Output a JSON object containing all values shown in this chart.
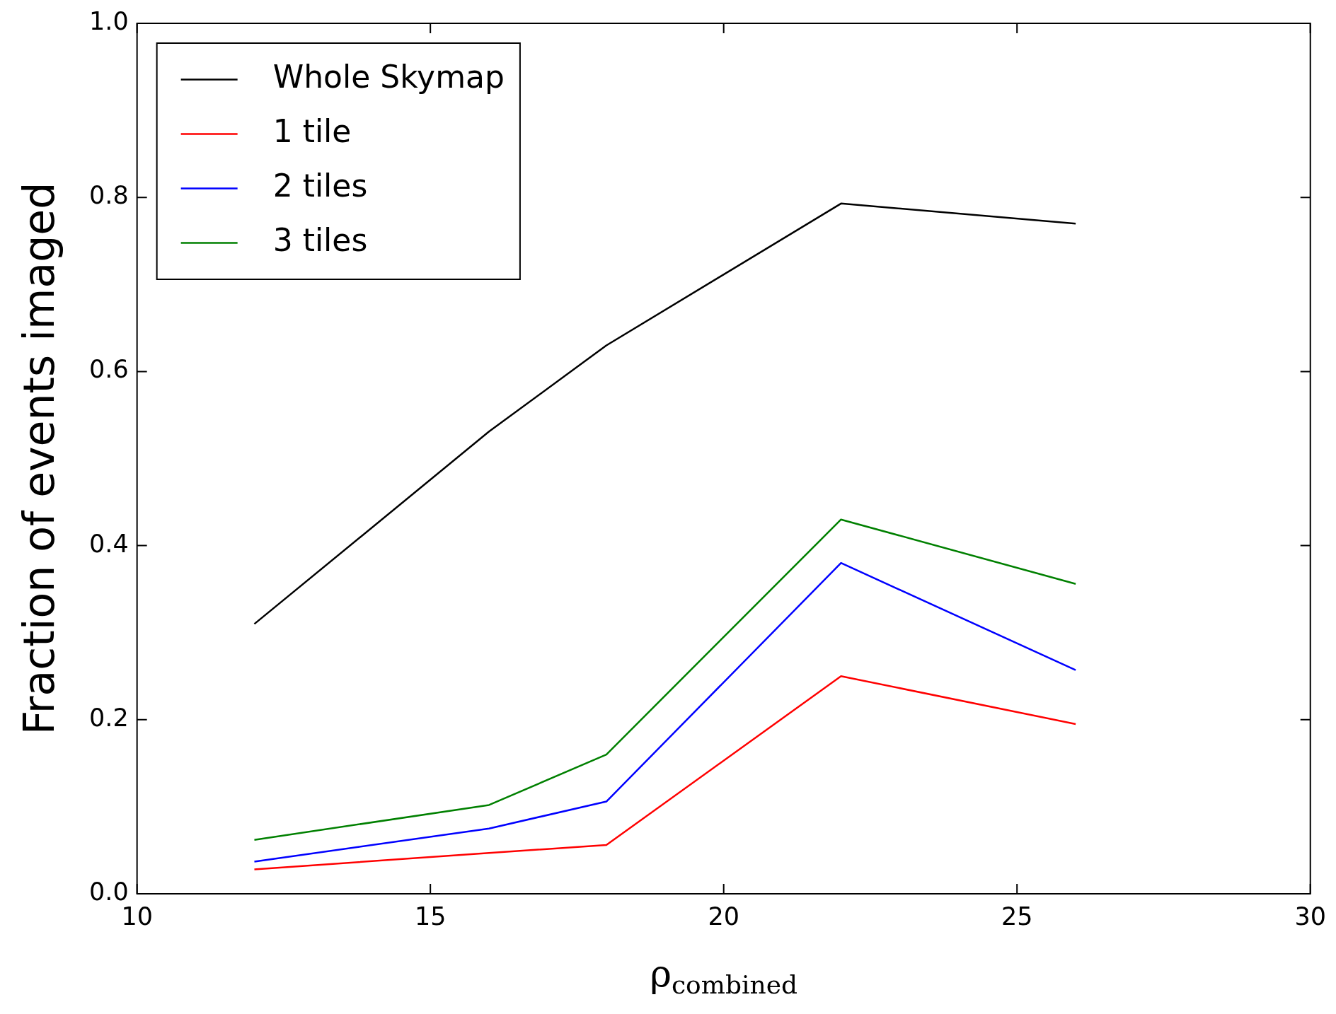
{
  "chart_data": {
    "type": "line",
    "xlabel": "ρ$_{combined}$",
    "ylabel": "Fraction of events imaged",
    "x": [
      12,
      16,
      18,
      22,
      26
    ],
    "series": [
      {
        "name": "Whole Skymap",
        "color": "#000000",
        "values": [
          0.31,
          0.531,
          0.63,
          0.793,
          0.77
        ]
      },
      {
        "name": "1 tile",
        "color": "#ff0000",
        "values": [
          0.028,
          0.047,
          0.056,
          0.25,
          0.195
        ]
      },
      {
        "name": "2 tiles",
        "color": "#0000ff",
        "values": [
          0.037,
          0.075,
          0.106,
          0.38,
          0.257
        ]
      },
      {
        "name": "3 tiles",
        "color": "#008000",
        "values": [
          0.062,
          0.102,
          0.16,
          0.43,
          0.356
        ]
      }
    ],
    "xlim": [
      10,
      30
    ],
    "xticks": [
      10,
      15,
      20,
      25,
      30
    ],
    "ylim": [
      0,
      1
    ],
    "yticks": [
      {
        "value": 0,
        "label": "0.0"
      },
      0.2,
      0.4,
      0.6,
      0.8,
      {
        "value": 1,
        "label": "1.0"
      }
    ],
    "grid": false,
    "legend": "top left",
    "marker": "none",
    "line_style": "solid"
  }
}
